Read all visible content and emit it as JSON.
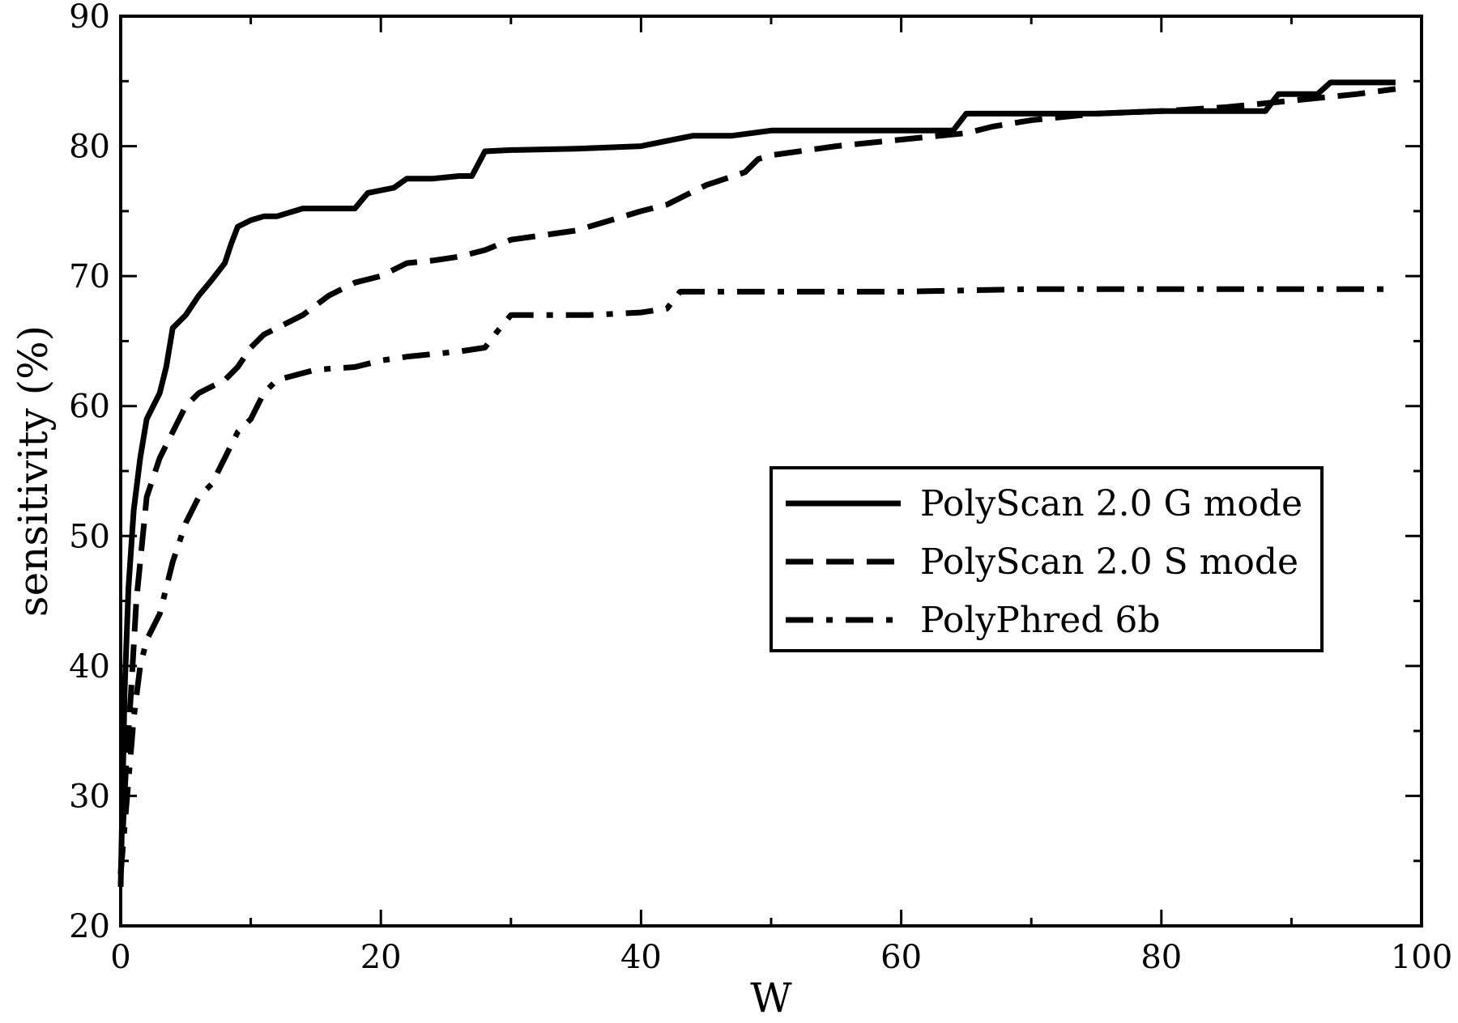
{
  "chart_data": {
    "type": "line",
    "title": "",
    "xlabel": "W",
    "ylabel": "sensitivity (%)",
    "xlim": [
      0,
      100
    ],
    "ylim": [
      20,
      90
    ],
    "x_ticks": [
      0,
      20,
      40,
      60,
      80,
      100
    ],
    "y_ticks": [
      20,
      30,
      40,
      50,
      60,
      70,
      80,
      90
    ],
    "grid": false,
    "legend_position": "center-right",
    "series": [
      {
        "name": "PolyScan 2.0 G mode",
        "style": "solid",
        "x": [
          0,
          0.3,
          0.6,
          1,
          1.5,
          2,
          3,
          3.5,
          4,
          5,
          6,
          7,
          8,
          8.5,
          9,
          10,
          11,
          12,
          14,
          16,
          18,
          19,
          21,
          22,
          24,
          26,
          27,
          28,
          30,
          35,
          40,
          42,
          44,
          47,
          50,
          55,
          60,
          64,
          65,
          70,
          75,
          80,
          85,
          88,
          89,
          92,
          93,
          96,
          98
        ],
        "values": [
          23,
          38,
          46,
          52,
          56,
          59,
          61,
          63,
          66,
          67,
          68.5,
          69.7,
          71,
          72.5,
          73.8,
          74.3,
          74.6,
          74.6,
          75.2,
          75.2,
          75.2,
          76.4,
          76.8,
          77.5,
          77.5,
          77.7,
          77.7,
          79.6,
          79.7,
          79.8,
          80,
          80.4,
          80.8,
          80.8,
          81.2,
          81.2,
          81.2,
          81.2,
          82.5,
          82.5,
          82.5,
          82.7,
          82.7,
          82.7,
          84,
          84,
          84.9,
          84.9,
          84.9
        ]
      },
      {
        "name": "PolyScan 2.0 S mode",
        "style": "dashed",
        "x": [
          0,
          0.4,
          0.8,
          1.2,
          1.7,
          2,
          3,
          4,
          5,
          6,
          7,
          8,
          9,
          10,
          11,
          12,
          14,
          16,
          18,
          20,
          22,
          24,
          26,
          28,
          30,
          35,
          40,
          42,
          45,
          48,
          49,
          50,
          55,
          60,
          65,
          67,
          70,
          75,
          80,
          85,
          90,
          95,
          98
        ],
        "values": [
          24,
          32,
          38,
          45,
          50,
          53,
          56,
          58,
          60,
          61,
          61.5,
          62,
          63,
          64.5,
          65.5,
          66,
          67,
          68.5,
          69.5,
          70,
          71,
          71.2,
          71.5,
          72,
          72.8,
          73.5,
          75,
          75.5,
          77,
          78,
          79,
          79.3,
          80,
          80.5,
          81,
          81.5,
          82,
          82.5,
          82.7,
          83,
          83.5,
          84,
          84.4
        ]
      },
      {
        "name": "PolyPhred 6b",
        "style": "dashdot",
        "x": [
          0,
          0.5,
          1,
          1.5,
          2,
          3,
          4,
          5,
          6,
          7,
          8,
          9,
          10,
          11,
          12,
          15,
          18,
          20,
          22,
          24,
          26,
          28,
          29,
          30,
          33,
          36,
          40,
          42,
          43,
          45,
          50,
          55,
          60,
          70,
          80,
          90,
          98
        ],
        "values": [
          24,
          30,
          36,
          40,
          42,
          44,
          48,
          51,
          53,
          54,
          56,
          58,
          59,
          61,
          62,
          62.8,
          63,
          63.5,
          63.8,
          64,
          64.2,
          64.5,
          65.8,
          67,
          67,
          67,
          67.2,
          67.5,
          68.8,
          68.8,
          68.8,
          68.8,
          68.8,
          69,
          69,
          69,
          69
        ]
      }
    ]
  }
}
